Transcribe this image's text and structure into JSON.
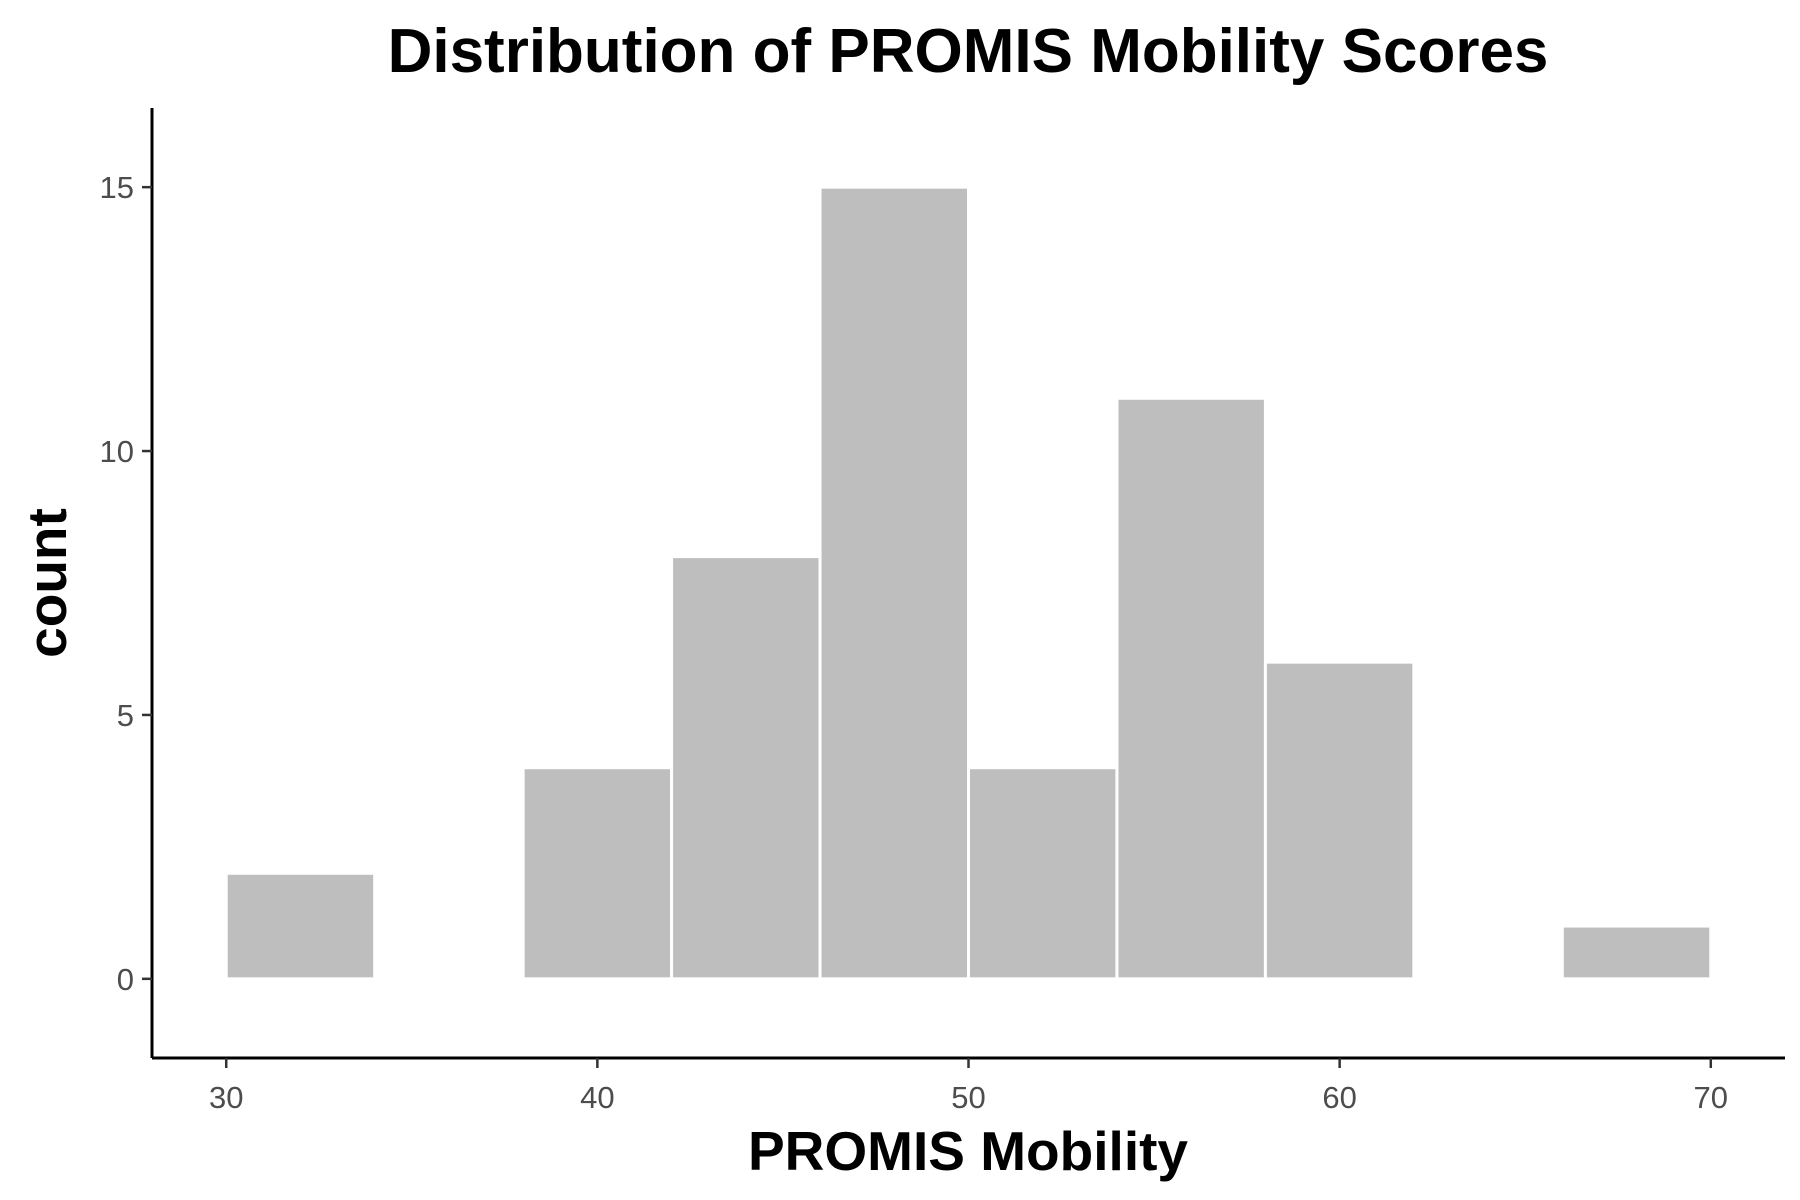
{
  "chart_data": {
    "type": "bar",
    "title": "Distribution of PROMIS Mobility Scores",
    "xlabel": "PROMIS Mobility",
    "ylabel": "count",
    "bins": [
      {
        "x_start": 30,
        "x_end": 34,
        "count": 2
      },
      {
        "x_start": 34,
        "x_end": 38,
        "count": 0
      },
      {
        "x_start": 38,
        "x_end": 42,
        "count": 4
      },
      {
        "x_start": 42,
        "x_end": 46,
        "count": 8
      },
      {
        "x_start": 46,
        "x_end": 50,
        "count": 15
      },
      {
        "x_start": 50,
        "x_end": 54,
        "count": 4
      },
      {
        "x_start": 54,
        "x_end": 58,
        "count": 11
      },
      {
        "x_start": 58,
        "x_end": 62,
        "count": 6
      },
      {
        "x_start": 62,
        "x_end": 66,
        "count": 0
      },
      {
        "x_start": 66,
        "x_end": 70,
        "count": 1
      }
    ],
    "xlim": [
      28,
      72
    ],
    "ylim": [
      -1.5,
      16.5
    ],
    "x_ticks": [
      30,
      40,
      50,
      60,
      70
    ],
    "y_ticks": [
      0,
      5,
      10,
      15
    ],
    "bar_color": "#bebebe",
    "bar_edge_color": "#ffffff",
    "axis_color": "#000000",
    "tick_label_color": "#4d4d4d",
    "grid": false,
    "legend": "none"
  }
}
